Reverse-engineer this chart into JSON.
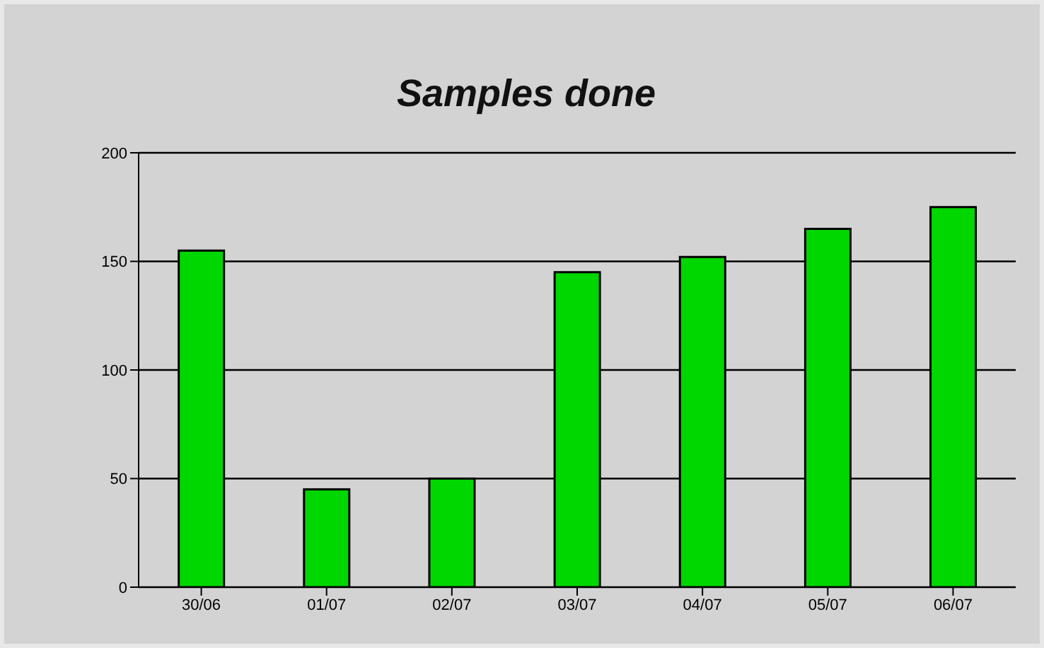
{
  "chart_data": {
    "type": "bar",
    "title": "Samples done",
    "categories": [
      "30/06",
      "01/07",
      "02/07",
      "03/07",
      "04/07",
      "05/07",
      "06/07"
    ],
    "values": [
      155,
      45,
      50,
      145,
      152,
      165,
      175
    ],
    "color": "#00d600",
    "ylim": [
      0,
      200
    ],
    "yticks": [
      0,
      50,
      100,
      150,
      200
    ],
    "grid": "y"
  }
}
